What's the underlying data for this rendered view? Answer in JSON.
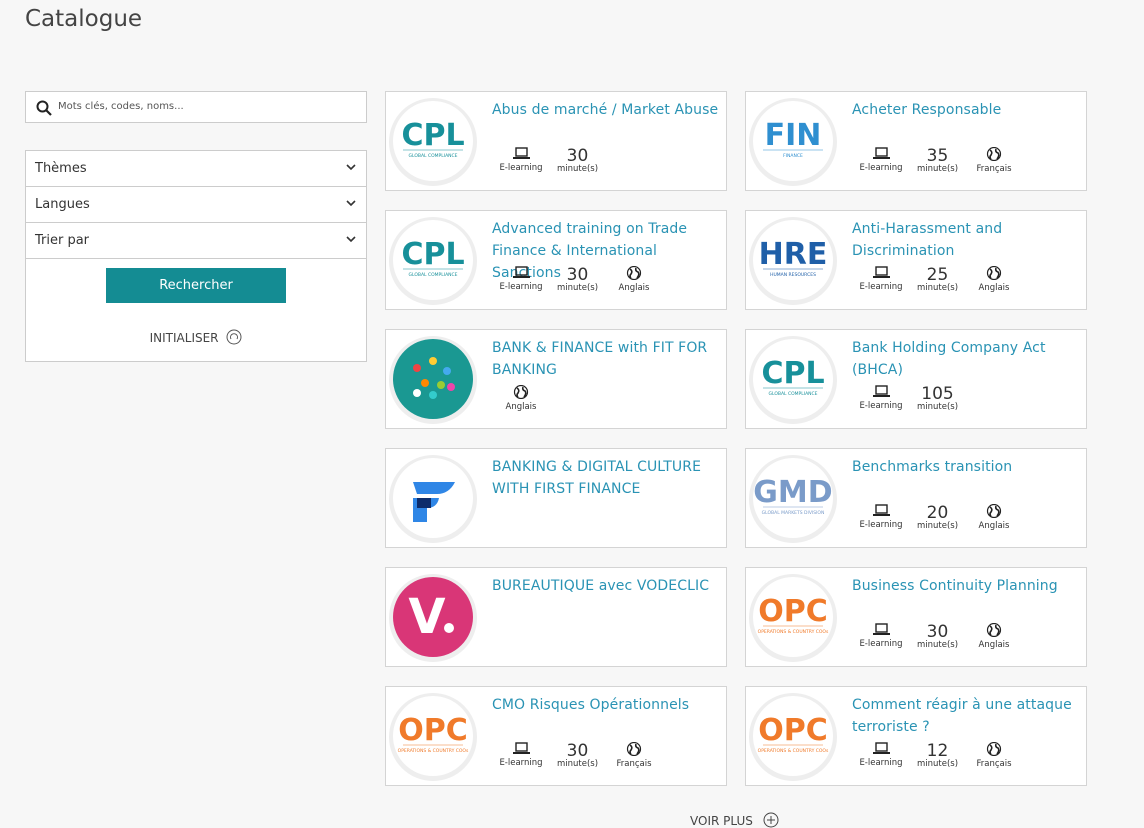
{
  "header": {
    "title": "Catalogue"
  },
  "search": {
    "placeholder": "Mots clés, codes, noms..."
  },
  "filters": [
    "Thèmes",
    "Langues",
    "Trier par"
  ],
  "search_button": "Rechercher",
  "reset": "INITIALISER",
  "courses": [
    {
      "title": "Abus de marché / Market Abuse",
      "logo": {
        "text": "CPL",
        "subtitle": "GLOBAL COMPLIANCE",
        "color": "#17909a"
      },
      "modality": "E-learning",
      "duration": "30",
      "duration_unit": "minute(s)"
    },
    {
      "title": "Acheter Responsable",
      "logo": {
        "text": "FIN",
        "subtitle": "FINANCE",
        "color": "#2f8fd0"
      },
      "modality": "E-learning",
      "duration": "35",
      "duration_unit": "minute(s)",
      "language": "Français"
    },
    {
      "title": "Advanced training on Trade Finance & International Sanctions",
      "logo": {
        "text": "CPL",
        "subtitle": "GLOBAL COMPLIANCE",
        "color": "#17909a"
      },
      "modality": "E-learning",
      "duration": "30",
      "duration_unit": "minute(s)",
      "language": "Anglais"
    },
    {
      "title": "Anti-Harassment and Discrimination",
      "logo": {
        "text": "HRE",
        "subtitle": "HUMAN RESOURCES",
        "color": "#1f5fa8"
      },
      "modality": "E-learning",
      "duration": "25",
      "duration_unit": "minute(s)",
      "language": "Anglais"
    },
    {
      "title": "BANK & FINANCE with FIT FOR BANKING",
      "logo": {
        "fill": "#1a9892"
      },
      "language": "Anglais"
    },
    {
      "title": "Bank Holding Company Act (BHCA)",
      "logo": {
        "text": "CPL",
        "subtitle": "GLOBAL COMPLIANCE",
        "color": "#17909a"
      },
      "modality": "E-learning",
      "duration": "105",
      "duration_unit": "minute(s)"
    },
    {
      "title": "BANKING & DIGITAL CULTURE WITH FIRST FINANCE",
      "logo": {
        "color": "#2f86e6"
      }
    },
    {
      "title": "Benchmarks transition",
      "logo": {
        "text": "GMD",
        "subtitle": "GLOBAL MARKETS DIVISION",
        "color": "#7a9bc9"
      },
      "modality": "E-learning",
      "duration": "20",
      "duration_unit": "minute(s)",
      "language": "Anglais"
    },
    {
      "title": "BUREAUTIQUE avec VODECLIC",
      "logo": {
        "text": "V",
        "fill": "#d93677"
      }
    },
    {
      "title": "Business Continuity Planning",
      "logo": {
        "text": "OPC",
        "subtitle": "OPERATIONS & COUNTRY COOs",
        "color": "#f07a2a"
      },
      "modality": "E-learning",
      "duration": "30",
      "duration_unit": "minute(s)",
      "language": "Anglais"
    },
    {
      "title": "CMO Risques Opérationnels",
      "logo": {
        "text": "OPC",
        "subtitle": "OPERATIONS & COUNTRY COOs",
        "color": "#f07a2a"
      },
      "modality": "E-learning",
      "duration": "30",
      "duration_unit": "minute(s)",
      "language": "Français"
    },
    {
      "title": "Comment réagir à une attaque terroriste ?",
      "logo": {
        "text": "OPC",
        "subtitle": "OPERATIONS & COUNTRY COOs",
        "color": "#f07a2a"
      },
      "modality": "E-learning",
      "duration": "12",
      "duration_unit": "minute(s)",
      "language": "Français"
    }
  ],
  "more": "VOIR PLUS"
}
